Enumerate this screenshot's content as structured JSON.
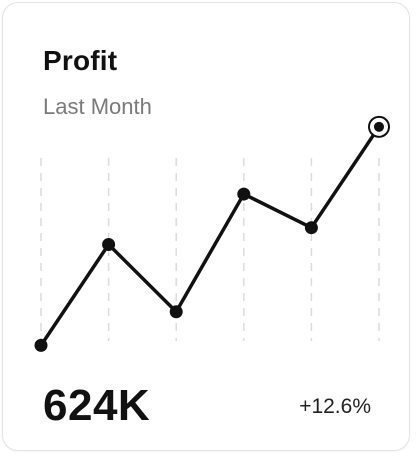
{
  "card": {
    "title": "Profit",
    "subtitle": "Last Month",
    "value": "624K",
    "change": "+12.6%"
  },
  "colors": {
    "line": "#111111",
    "grid": "#dcdcdc",
    "subtitle": "#7a7a7a"
  },
  "chart_data": {
    "type": "line",
    "series": [
      {
        "values": [
          1,
          4,
          2,
          5.5,
          4.5,
          7.5
        ]
      }
    ],
    "ylim": [
      0,
      8
    ],
    "grid": "vertical-dashed",
    "highlight_last_point": true
  }
}
